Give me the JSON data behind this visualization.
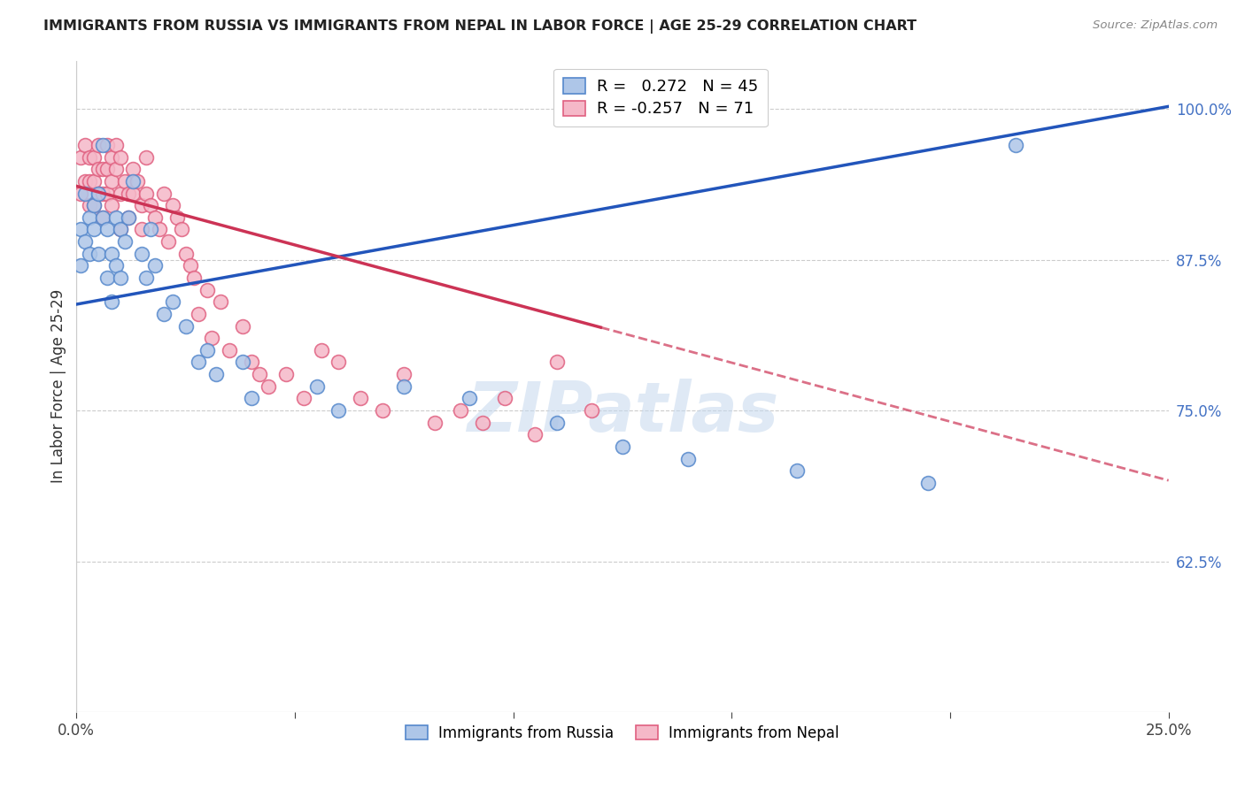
{
  "title": "IMMIGRANTS FROM RUSSIA VS IMMIGRANTS FROM NEPAL IN LABOR FORCE | AGE 25-29 CORRELATION CHART",
  "source": "Source: ZipAtlas.com",
  "ylabel": "In Labor Force | Age 25-29",
  "russia_R": 0.272,
  "russia_N": 45,
  "nepal_R": -0.257,
  "nepal_N": 71,
  "russia_color": "#aec6e8",
  "russia_edge_color": "#5588cc",
  "russia_line_color": "#2255bb",
  "nepal_color": "#f5b8c8",
  "nepal_edge_color": "#e06080",
  "nepal_line_color": "#cc3355",
  "background_color": "#ffffff",
  "grid_color": "#cccccc",
  "title_color": "#222222",
  "right_axis_color": "#4472c4",
  "xmin": 0.0,
  "xmax": 0.25,
  "ymin": 0.5,
  "ymax": 1.04,
  "yticks": [
    0.625,
    0.75,
    0.875,
    1.0
  ],
  "xticks": [
    0.0,
    0.05,
    0.1,
    0.15,
    0.2,
    0.25
  ],
  "russia_x": [
    0.001,
    0.001,
    0.002,
    0.002,
    0.003,
    0.003,
    0.004,
    0.004,
    0.005,
    0.005,
    0.006,
    0.006,
    0.007,
    0.007,
    0.008,
    0.008,
    0.009,
    0.009,
    0.01,
    0.01,
    0.011,
    0.012,
    0.013,
    0.015,
    0.016,
    0.017,
    0.018,
    0.02,
    0.022,
    0.025,
    0.028,
    0.03,
    0.032,
    0.038,
    0.04,
    0.055,
    0.06,
    0.075,
    0.09,
    0.11,
    0.125,
    0.14,
    0.165,
    0.195,
    0.215
  ],
  "russia_y": [
    0.9,
    0.87,
    0.93,
    0.89,
    0.91,
    0.88,
    0.92,
    0.9,
    0.93,
    0.88,
    0.97,
    0.91,
    0.9,
    0.86,
    0.88,
    0.84,
    0.91,
    0.87,
    0.9,
    0.86,
    0.89,
    0.91,
    0.94,
    0.88,
    0.86,
    0.9,
    0.87,
    0.83,
    0.84,
    0.82,
    0.79,
    0.8,
    0.78,
    0.79,
    0.76,
    0.77,
    0.75,
    0.77,
    0.76,
    0.74,
    0.72,
    0.71,
    0.7,
    0.69,
    0.97
  ],
  "nepal_x": [
    0.001,
    0.001,
    0.002,
    0.002,
    0.003,
    0.003,
    0.003,
    0.004,
    0.004,
    0.004,
    0.005,
    0.005,
    0.005,
    0.006,
    0.006,
    0.006,
    0.007,
    0.007,
    0.007,
    0.008,
    0.008,
    0.008,
    0.009,
    0.009,
    0.01,
    0.01,
    0.01,
    0.011,
    0.012,
    0.012,
    0.013,
    0.013,
    0.014,
    0.015,
    0.015,
    0.016,
    0.016,
    0.017,
    0.018,
    0.019,
    0.02,
    0.021,
    0.022,
    0.023,
    0.024,
    0.025,
    0.026,
    0.027,
    0.028,
    0.03,
    0.031,
    0.033,
    0.035,
    0.038,
    0.04,
    0.042,
    0.044,
    0.048,
    0.052,
    0.056,
    0.06,
    0.065,
    0.07,
    0.075,
    0.082,
    0.088,
    0.093,
    0.098,
    0.105,
    0.11,
    0.118
  ],
  "nepal_y": [
    0.96,
    0.93,
    0.97,
    0.94,
    0.96,
    0.94,
    0.92,
    0.96,
    0.94,
    0.92,
    0.97,
    0.95,
    0.93,
    0.95,
    0.93,
    0.91,
    0.97,
    0.95,
    0.93,
    0.96,
    0.94,
    0.92,
    0.97,
    0.95,
    0.96,
    0.93,
    0.9,
    0.94,
    0.93,
    0.91,
    0.95,
    0.93,
    0.94,
    0.92,
    0.9,
    0.96,
    0.93,
    0.92,
    0.91,
    0.9,
    0.93,
    0.89,
    0.92,
    0.91,
    0.9,
    0.88,
    0.87,
    0.86,
    0.83,
    0.85,
    0.81,
    0.84,
    0.8,
    0.82,
    0.79,
    0.78,
    0.77,
    0.78,
    0.76,
    0.8,
    0.79,
    0.76,
    0.75,
    0.78,
    0.74,
    0.75,
    0.74,
    0.76,
    0.73,
    0.79,
    0.75
  ],
  "legend_label_russia": "Immigrants from Russia",
  "legend_label_nepal": "Immigrants from Nepal",
  "watermark": "ZIPatlas",
  "figsize": [
    14.06,
    8.92
  ],
  "dpi": 100,
  "russia_trend_x0": 0.0,
  "russia_trend_y0": 0.838,
  "russia_trend_x1": 0.25,
  "russia_trend_y1": 1.002,
  "nepal_trend_x0": 0.0,
  "nepal_trend_y0": 0.936,
  "nepal_trend_x1": 0.25,
  "nepal_trend_y1": 0.692
}
